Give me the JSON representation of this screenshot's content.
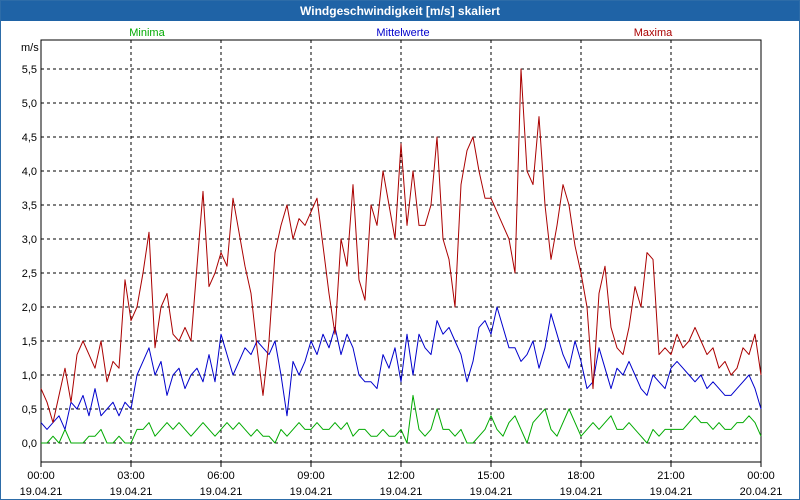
{
  "window": {
    "title": "Windgeschwindigkeit [m/s] skaliert"
  },
  "colors": {
    "minima": "#00aa00",
    "mittelwerte": "#0000cc",
    "maxima": "#aa0000",
    "grid": "#000000",
    "title_bar": "#1f63a6"
  },
  "chart_data": {
    "type": "line",
    "title": "Windgeschwindigkeit [m/s] skaliert",
    "ylabel": "m/s",
    "xlabel": "",
    "ylim": [
      -0.3,
      5.9
    ],
    "xlim": [
      0,
      24
    ],
    "grid": true,
    "legend_placement": "top",
    "y_ticks": [
      "0,0",
      "0,5",
      "1,0",
      "1,5",
      "2,0",
      "2,5",
      "3,0",
      "3,5",
      "4,0",
      "4,5",
      "5,0",
      "5,5"
    ],
    "y_tick_values": [
      0,
      0.5,
      1,
      1.5,
      2,
      2.5,
      3,
      3.5,
      4,
      4.5,
      5,
      5.5
    ],
    "x_tick_values": [
      0,
      3,
      6,
      9,
      12,
      15,
      18,
      21,
      24
    ],
    "x_tick_times": [
      "00:00",
      "03:00",
      "06:00",
      "09:00",
      "12:00",
      "15:00",
      "18:00",
      "21:00",
      "00:00"
    ],
    "x_tick_dates": [
      "19.04.21",
      "19.04.21",
      "19.04.21",
      "19.04.21",
      "19.04.21",
      "19.04.21",
      "19.04.21",
      "19.04.21",
      "20.04.21"
    ],
    "x_hours": [
      0,
      0.2,
      0.4,
      0.6,
      0.8,
      1,
      1.2,
      1.4,
      1.6,
      1.8,
      2,
      2.2,
      2.4,
      2.6,
      2.8,
      3,
      3.2,
      3.4,
      3.6,
      3.8,
      4,
      4.2,
      4.4,
      4.6,
      4.8,
      5,
      5.2,
      5.4,
      5.6,
      5.8,
      6,
      6.2,
      6.4,
      6.6,
      6.8,
      7,
      7.2,
      7.4,
      7.6,
      7.8,
      8,
      8.2,
      8.4,
      8.6,
      8.8,
      9,
      9.2,
      9.4,
      9.6,
      9.8,
      10,
      10.2,
      10.4,
      10.6,
      10.8,
      11,
      11.2,
      11.4,
      11.6,
      11.8,
      12,
      12.2,
      12.4,
      12.6,
      12.8,
      13,
      13.2,
      13.4,
      13.6,
      13.8,
      14,
      14.2,
      14.4,
      14.6,
      14.8,
      15,
      15.2,
      15.4,
      15.6,
      15.8,
      16,
      16.2,
      16.4,
      16.6,
      16.8,
      17,
      17.2,
      17.4,
      17.6,
      17.8,
      18,
      18.2,
      18.4,
      18.6,
      18.8,
      19,
      19.2,
      19.4,
      19.6,
      19.8,
      20,
      20.2,
      20.4,
      20.6,
      20.8,
      21,
      21.2,
      21.4,
      21.6,
      21.8,
      22,
      22.2,
      22.4,
      22.6,
      22.8,
      23,
      23.2,
      23.4,
      23.6,
      23.8,
      24
    ],
    "series": [
      {
        "name": "Minima",
        "values": [
          0.0,
          0.0,
          0.1,
          0.0,
          0.2,
          0.0,
          0.0,
          0.0,
          0.1,
          0.1,
          0.2,
          0.0,
          0.0,
          0.1,
          0.0,
          0.0,
          0.2,
          0.2,
          0.3,
          0.1,
          0.2,
          0.3,
          0.2,
          0.3,
          0.2,
          0.1,
          0.2,
          0.3,
          0.2,
          0.1,
          0.2,
          0.3,
          0.2,
          0.3,
          0.2,
          0.1,
          0.2,
          0.1,
          0.1,
          0.0,
          0.2,
          0.1,
          0.2,
          0.3,
          0.2,
          0.2,
          0.3,
          0.2,
          0.2,
          0.3,
          0.2,
          0.3,
          0.1,
          0.2,
          0.2,
          0.1,
          0.1,
          0.2,
          0.1,
          0.1,
          0.2,
          0.0,
          0.7,
          0.2,
          0.1,
          0.2,
          0.5,
          0.2,
          0.2,
          0.1,
          0.2,
          0.0,
          0.0,
          0.1,
          0.2,
          0.4,
          0.2,
          0.1,
          0.3,
          0.4,
          0.2,
          0.0,
          0.3,
          0.4,
          0.5,
          0.2,
          0.1,
          0.3,
          0.5,
          0.3,
          0.1,
          0.2,
          0.3,
          0.2,
          0.3,
          0.4,
          0.2,
          0.2,
          0.3,
          0.2,
          0.1,
          0.0,
          0.2,
          0.1,
          0.2,
          0.2,
          0.2,
          0.2,
          0.3,
          0.4,
          0.3,
          0.3,
          0.2,
          0.3,
          0.2,
          0.2,
          0.3,
          0.3,
          0.4,
          0.3,
          0.1
        ]
      },
      {
        "name": "Mittelwerte",
        "values": [
          0.3,
          0.2,
          0.3,
          0.4,
          0.2,
          0.6,
          0.5,
          0.7,
          0.4,
          0.8,
          0.4,
          0.5,
          0.6,
          0.4,
          0.6,
          0.5,
          1.0,
          1.2,
          1.4,
          1.0,
          1.2,
          0.7,
          1.0,
          1.1,
          0.8,
          1.0,
          1.1,
          0.9,
          1.3,
          0.9,
          1.6,
          1.3,
          1.0,
          1.2,
          1.4,
          1.3,
          1.5,
          1.4,
          1.3,
          1.5,
          1.0,
          0.4,
          1.2,
          1.0,
          1.2,
          1.5,
          1.3,
          1.6,
          1.4,
          1.7,
          1.3,
          1.6,
          1.4,
          1.0,
          0.9,
          0.9,
          0.8,
          1.3,
          1.1,
          1.4,
          0.9,
          1.6,
          1.0,
          1.6,
          1.4,
          1.3,
          1.8,
          1.6,
          1.7,
          1.5,
          1.3,
          0.9,
          1.2,
          1.7,
          1.8,
          1.6,
          2.0,
          1.7,
          1.4,
          1.4,
          1.2,
          1.3,
          1.5,
          1.1,
          1.4,
          1.9,
          1.6,
          1.3,
          1.1,
          1.5,
          1.2,
          0.8,
          0.9,
          1.4,
          1.1,
          0.8,
          1.1,
          1.0,
          1.2,
          1.0,
          0.8,
          0.7,
          1.0,
          0.9,
          0.8,
          1.1,
          1.2,
          1.1,
          1.0,
          0.9,
          1.0,
          0.8,
          0.9,
          0.8,
          0.7,
          0.7,
          0.8,
          0.9,
          1.0,
          0.8,
          0.5
        ]
      },
      {
        "name": "Maxima",
        "values": [
          0.8,
          0.6,
          0.3,
          0.7,
          1.1,
          0.6,
          1.3,
          1.5,
          1.3,
          1.1,
          1.5,
          0.9,
          1.2,
          1.1,
          2.4,
          1.8,
          2.0,
          2.5,
          3.1,
          1.4,
          2.0,
          2.2,
          1.6,
          1.5,
          1.7,
          1.5,
          2.6,
          3.7,
          2.3,
          2.5,
          2.8,
          2.6,
          3.6,
          3.1,
          2.6,
          2.2,
          1.4,
          0.7,
          1.5,
          2.8,
          3.2,
          3.5,
          3.0,
          3.3,
          3.2,
          3.4,
          3.6,
          2.9,
          2.2,
          1.6,
          3.0,
          2.6,
          3.8,
          2.4,
          2.1,
          3.5,
          3.2,
          4.0,
          3.5,
          3.0,
          4.4,
          3.2,
          4.0,
          3.2,
          3.2,
          3.5,
          4.5,
          3.0,
          2.7,
          2.0,
          3.8,
          4.3,
          4.5,
          4.0,
          3.6,
          3.6,
          3.4,
          3.2,
          3.0,
          2.5,
          5.5,
          4.0,
          3.8,
          4.8,
          3.5,
          2.7,
          3.2,
          3.8,
          3.5,
          2.9,
          2.5,
          2.0,
          0.8,
          2.2,
          2.6,
          1.7,
          1.4,
          1.3,
          1.7,
          2.3,
          2.0,
          2.8,
          2.7,
          1.3,
          1.4,
          1.3,
          1.6,
          1.4,
          1.5,
          1.7,
          1.5,
          1.3,
          1.4,
          1.1,
          1.2,
          1.0,
          1.1,
          1.4,
          1.3,
          1.6,
          1.0
        ]
      }
    ]
  }
}
